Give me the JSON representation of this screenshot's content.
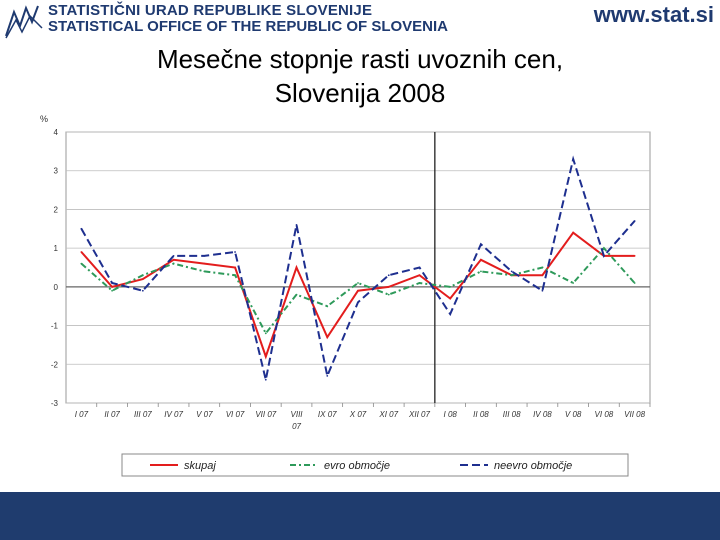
{
  "header": {
    "org_name_sl": "STATISTIČNI URAD REPUBLIKE SLOVENIJE",
    "org_name_en": "STATISTICAL OFFICE OF THE REPUBLIC OF SLOVENIA",
    "site_url": "www.stat.si",
    "logo_icon": "zigzag-chart-icon"
  },
  "title": {
    "line1": "Mesečne stopnje rasti uvoznih cen,",
    "line2": "Slovenija 2008"
  },
  "colors": {
    "brand": "#1f3a70",
    "footer": "#1f3c6e",
    "skupaj": "#e31d1d",
    "evro": "#2e9a5a",
    "neevro": "#1e2f8f",
    "marker_line": "#222222"
  },
  "chart_data": {
    "type": "line",
    "ylabel": "%",
    "ylim": [
      -3,
      4
    ],
    "yticks": [
      "-3",
      "-2",
      "-1",
      "0",
      "1",
      "2",
      "3",
      "4"
    ],
    "grid": true,
    "legend_position": "bottom",
    "categories": [
      "I 07",
      "II 07",
      "III 07",
      "IV 07",
      "V 07",
      "VI 07",
      "VII 07",
      "VIII 07",
      "IX 07",
      "X 07",
      "XI 07",
      "XII 07",
      "I 08",
      "II 08",
      "III 08",
      "IV 08",
      "V 08",
      "VI 08",
      "VII 08"
    ],
    "separator_after_category": "XII 07",
    "series": [
      {
        "name": "skupaj",
        "style": "solid",
        "values": [
          0.9,
          0.0,
          0.2,
          0.7,
          0.6,
          0.5,
          -1.8,
          0.5,
          -1.3,
          -0.1,
          0.0,
          0.3,
          -0.3,
          0.7,
          0.3,
          0.3,
          1.4,
          0.8,
          0.8
        ]
      },
      {
        "name": "evro območje",
        "style": "dashdot",
        "values": [
          0.6,
          -0.1,
          0.3,
          0.6,
          0.4,
          0.3,
          -1.2,
          -0.2,
          -0.5,
          0.1,
          -0.2,
          0.1,
          0.0,
          0.4,
          0.3,
          0.5,
          0.1,
          1.0,
          0.1
        ]
      },
      {
        "name": "neevro območje",
        "style": "dashed",
        "values": [
          1.5,
          0.1,
          -0.1,
          0.8,
          0.8,
          0.9,
          -2.4,
          1.6,
          -2.3,
          -0.4,
          0.3,
          0.5,
          -0.7,
          1.1,
          0.4,
          -0.1,
          3.3,
          0.8,
          1.7
        ]
      }
    ]
  }
}
